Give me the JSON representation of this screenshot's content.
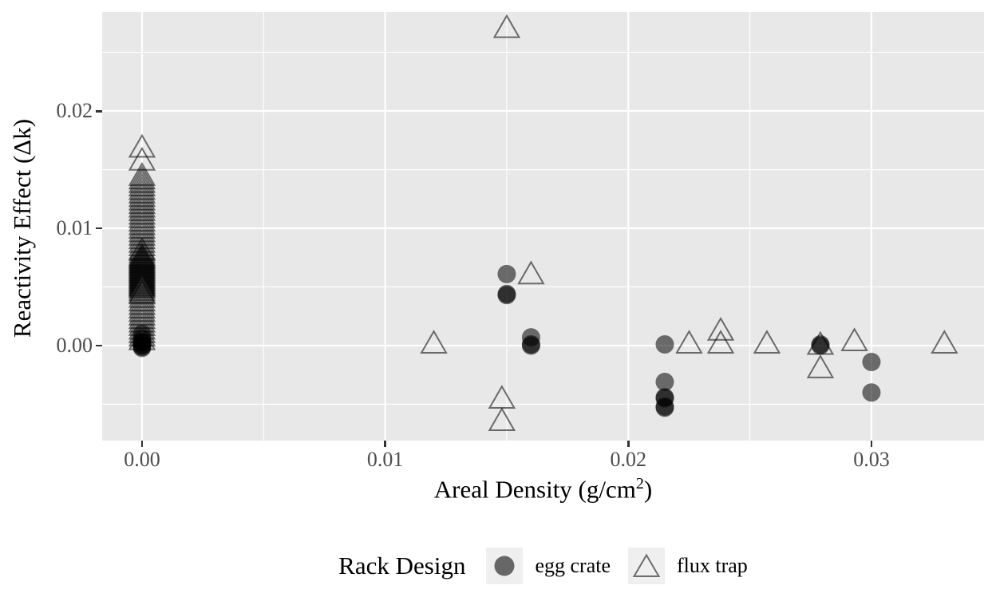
{
  "colors": {
    "panel_bg": "#E8E8E8",
    "grid": "#FFFFFF",
    "tick_label": "#4D4D4D",
    "axis_title": "#000000",
    "marker": "#000000",
    "legend_key_bg": "#EFEFEF"
  },
  "x_axis": {
    "label_pre": "Areal Density (g/cm",
    "label_sup": "2",
    "label_post": ")"
  },
  "chart_data": {
    "type": "scatter",
    "title": "",
    "xlabel": "Areal Density (g/cm²)",
    "ylabel": "Reactivity Effect (Δk)",
    "xlim": [
      -0.00164,
      0.03463
    ],
    "ylim": [
      -0.0081,
      0.02844
    ],
    "grid": true,
    "legend_position": "bottom",
    "legend_title": "Rack Design",
    "x_ticks": {
      "values": [
        0.0,
        0.01,
        0.02,
        0.03
      ],
      "labels": [
        "0.00",
        "0.01",
        "0.02",
        "0.03"
      ]
    },
    "y_ticks": {
      "values": [
        0.0,
        0.01,
        0.02
      ],
      "labels": [
        "0.00",
        "0.01",
        "0.02"
      ]
    },
    "x_minor": [
      0.005,
      0.015,
      0.025
    ],
    "y_minor": [
      -0.005,
      0.005,
      0.015,
      0.025
    ],
    "marker_alpha": 0.55,
    "series": [
      {
        "name": "egg crate",
        "marker": "circle",
        "points": [
          [
            0.0,
            0.001
          ],
          [
            0.0,
            0.0006
          ],
          [
            0.0,
            0.0003
          ],
          [
            0.0,
            0.0003
          ],
          [
            0.0,
            0.0001
          ],
          [
            0.0,
            0.0
          ],
          [
            0.0,
            -0.0001
          ],
          [
            0.0,
            -0.0002
          ],
          [
            0.015,
            0.0061
          ],
          [
            0.015,
            0.0044
          ],
          [
            0.015,
            0.0043
          ],
          [
            0.016,
            0.0007
          ],
          [
            0.016,
            0.0001
          ],
          [
            0.016,
            0.0
          ],
          [
            0.0215,
            0.0001
          ],
          [
            0.0215,
            -0.0031
          ],
          [
            0.0215,
            -0.0044
          ],
          [
            0.0215,
            -0.0045
          ],
          [
            0.0215,
            -0.0052
          ],
          [
            0.0215,
            -0.0053
          ],
          [
            0.0279,
            0.0001
          ],
          [
            0.0279,
            0.0
          ],
          [
            0.03,
            -0.0014
          ],
          [
            0.03,
            -0.004
          ]
        ]
      },
      {
        "name": "flux trap",
        "marker": "triangle",
        "points": [
          [
            0.0,
            0.017
          ],
          [
            0.0,
            0.0159
          ],
          [
            0.0,
            0.0146
          ],
          [
            0.0,
            0.0143
          ],
          [
            0.0,
            0.014
          ],
          [
            0.0,
            0.0137
          ],
          [
            0.0,
            0.0134
          ],
          [
            0.0,
            0.0131
          ],
          [
            0.0,
            0.0128
          ],
          [
            0.0,
            0.0125
          ],
          [
            0.0,
            0.0122
          ],
          [
            0.0,
            0.0119
          ],
          [
            0.0,
            0.0116
          ],
          [
            0.0,
            0.0113
          ],
          [
            0.0,
            0.011
          ],
          [
            0.0,
            0.0107
          ],
          [
            0.0,
            0.0104
          ],
          [
            0.0,
            0.0101
          ],
          [
            0.0,
            0.0098
          ],
          [
            0.0,
            0.0095
          ],
          [
            0.0,
            0.0092
          ],
          [
            0.0,
            0.0089
          ],
          [
            0.0,
            0.0086
          ],
          [
            0.0,
            0.0083
          ],
          [
            0.0,
            0.0082
          ],
          [
            0.0,
            0.008
          ],
          [
            0.0,
            0.0078
          ],
          [
            0.0,
            0.0077
          ],
          [
            0.0,
            0.0076
          ],
          [
            0.0,
            0.0075
          ],
          [
            0.0,
            0.0074
          ],
          [
            0.0,
            0.0073
          ],
          [
            0.0,
            0.0072
          ],
          [
            0.0,
            0.0071
          ],
          [
            0.0,
            0.007
          ],
          [
            0.0,
            0.0069
          ],
          [
            0.0,
            0.0068
          ],
          [
            0.0,
            0.0067
          ],
          [
            0.0,
            0.0066
          ],
          [
            0.0,
            0.0065
          ],
          [
            0.0,
            0.0064
          ],
          [
            0.0,
            0.0063
          ],
          [
            0.0,
            0.0062
          ],
          [
            0.0,
            0.0061
          ],
          [
            0.0,
            0.006
          ],
          [
            0.0,
            0.0059
          ],
          [
            0.0,
            0.0058
          ],
          [
            0.0,
            0.0057
          ],
          [
            0.0,
            0.0056
          ],
          [
            0.0,
            0.0055
          ],
          [
            0.0,
            0.0054
          ],
          [
            0.0,
            0.0053
          ],
          [
            0.0,
            0.0052
          ],
          [
            0.0,
            0.0051
          ],
          [
            0.0,
            0.005
          ],
          [
            0.0,
            0.0048
          ],
          [
            0.0,
            0.0046
          ],
          [
            0.0,
            0.0045
          ],
          [
            0.0,
            0.0042
          ],
          [
            0.0,
            0.0039
          ],
          [
            0.0,
            0.0036
          ],
          [
            0.0,
            0.0033
          ],
          [
            0.0,
            0.003
          ],
          [
            0.0,
            0.0027
          ],
          [
            0.0,
            0.0024
          ],
          [
            0.0,
            0.0021
          ],
          [
            0.0,
            0.0018
          ],
          [
            0.0,
            0.0015
          ],
          [
            0.0,
            0.0012
          ],
          [
            0.0,
            0.0009
          ],
          [
            0.0,
            0.0006
          ],
          [
            0.015,
            0.0272
          ],
          [
            0.016,
            0.0062
          ],
          [
            0.012,
            0.0003
          ],
          [
            0.0148,
            -0.0044
          ],
          [
            0.0148,
            -0.0063
          ],
          [
            0.0225,
            0.0003
          ],
          [
            0.0238,
            0.0014
          ],
          [
            0.0238,
            0.0003
          ],
          [
            0.0257,
            0.0003
          ],
          [
            0.0279,
            0.0002
          ],
          [
            0.0279,
            -0.0018
          ],
          [
            0.0293,
            0.0005
          ],
          [
            0.033,
            0.0003
          ]
        ]
      }
    ]
  }
}
